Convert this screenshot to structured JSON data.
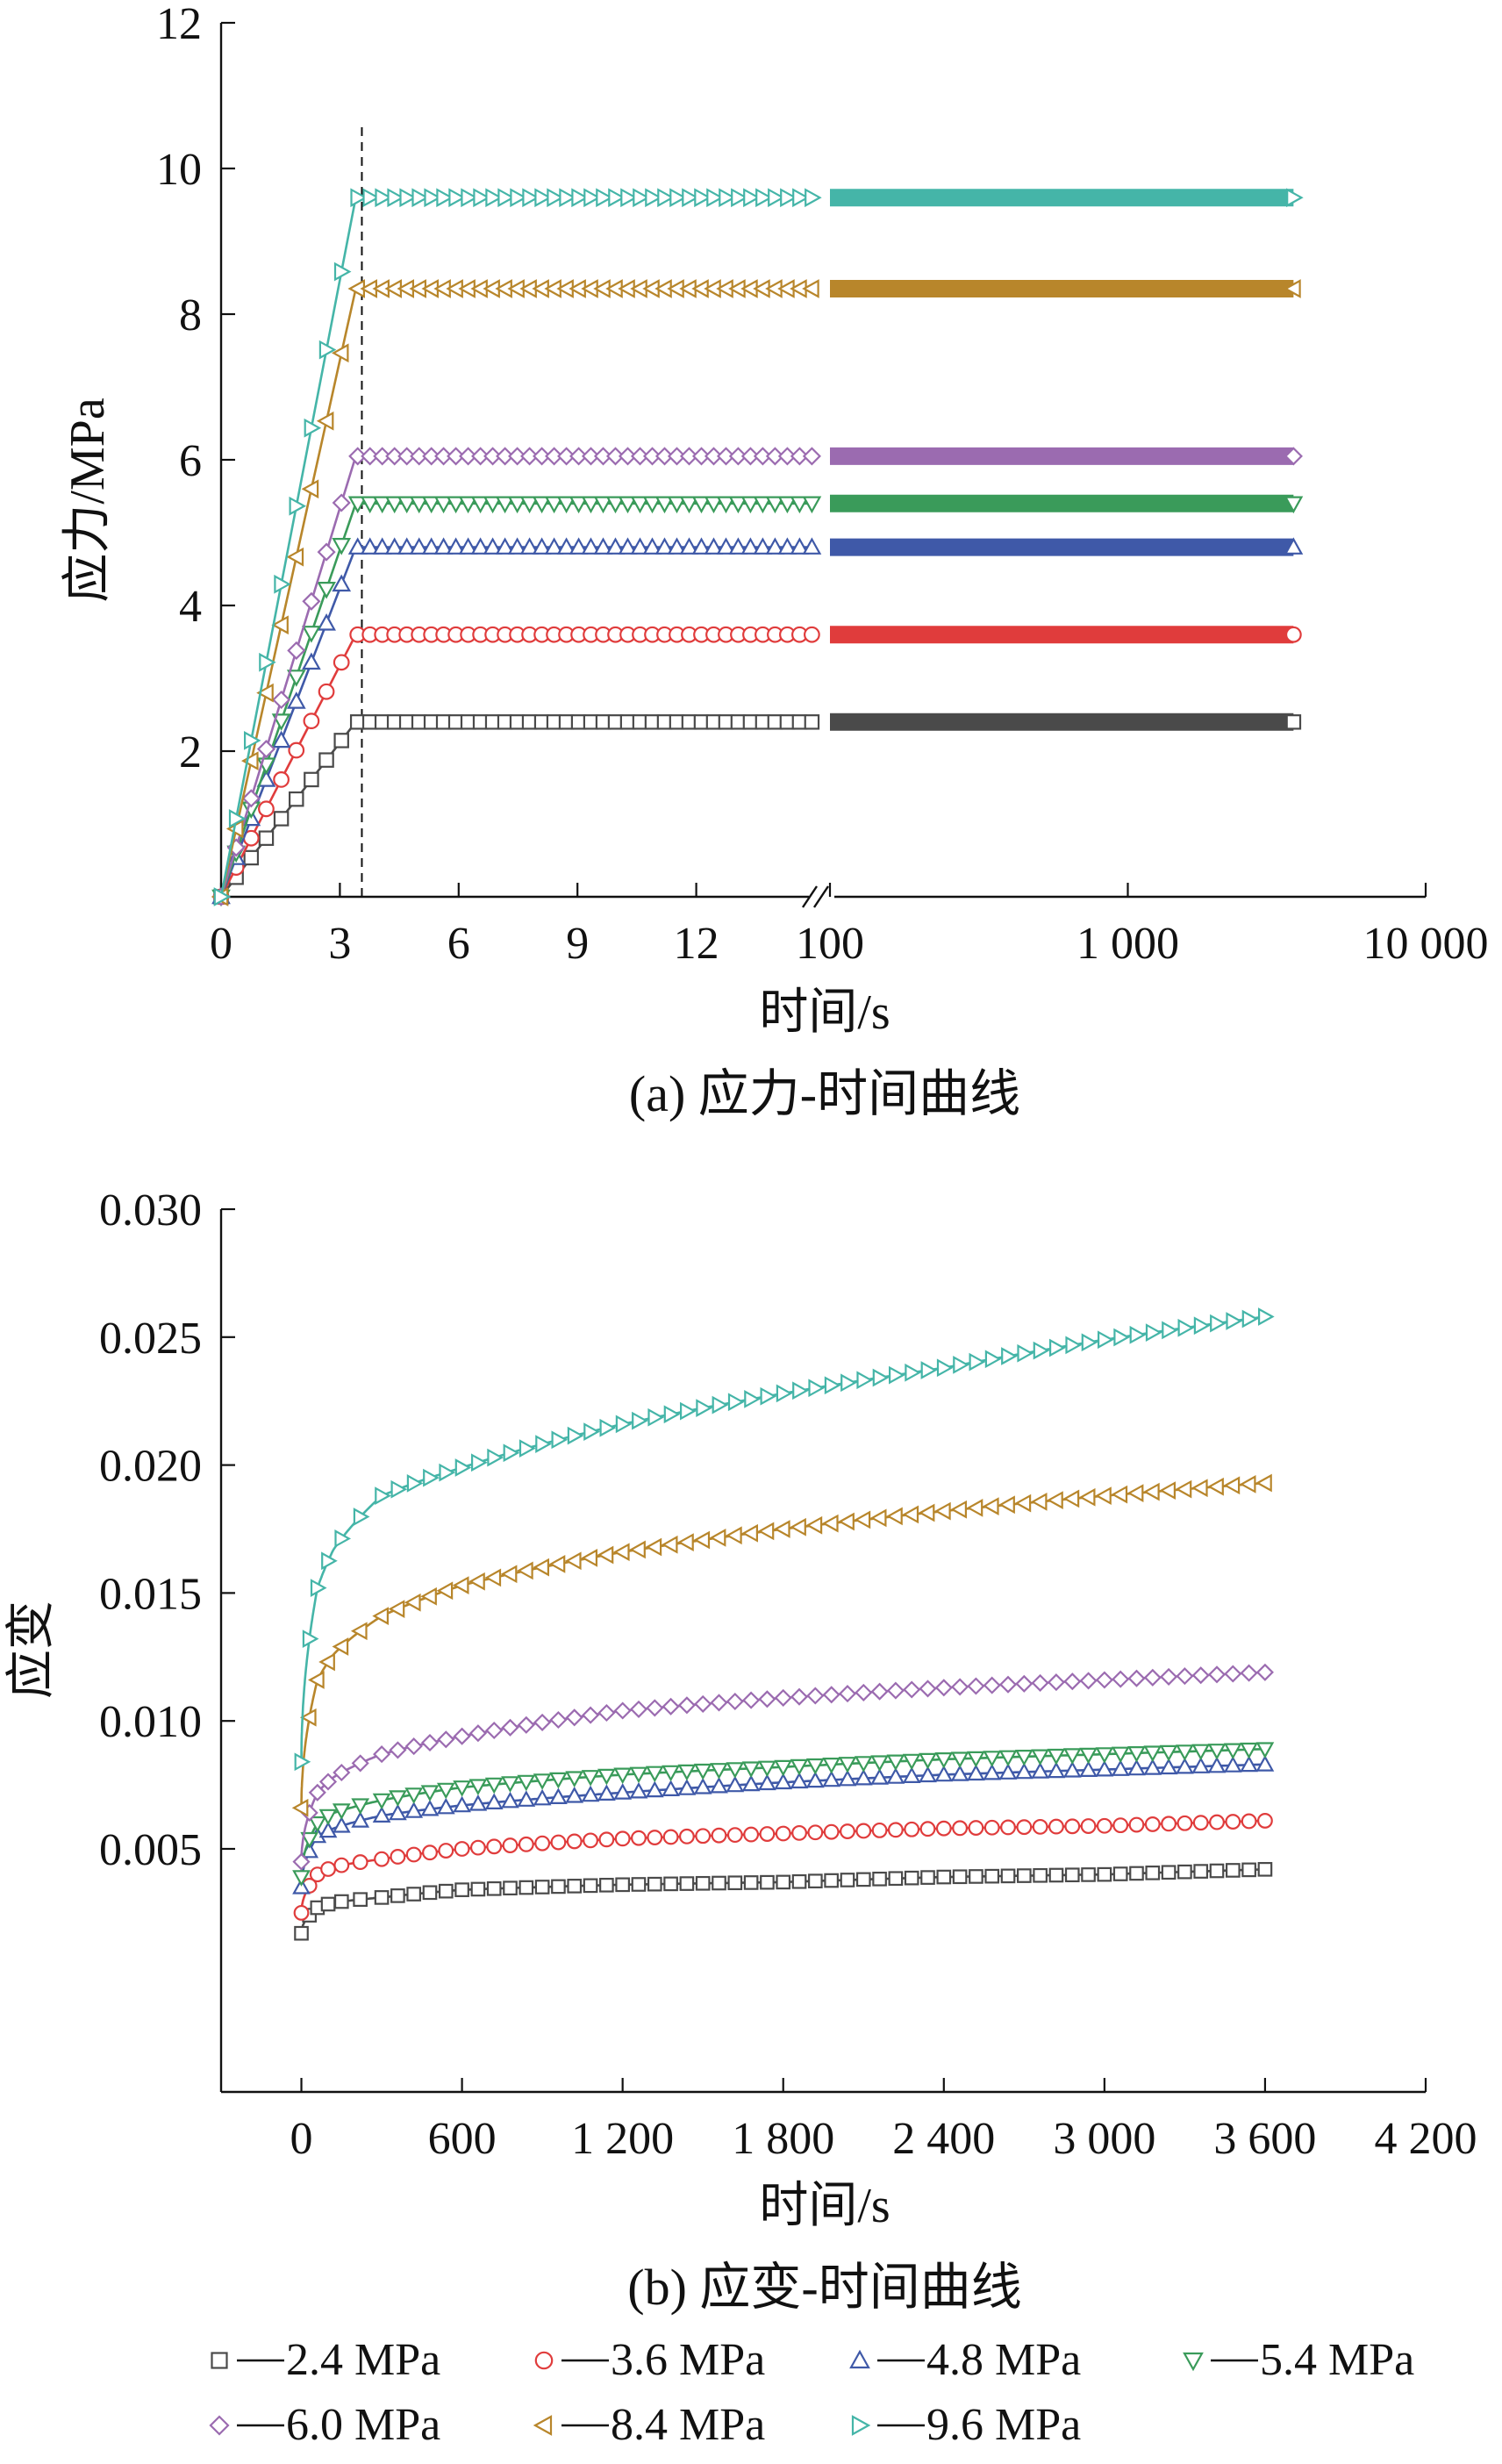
{
  "chart_data": [
    {
      "type": "line",
      "caption": "(a) 应力-时间曲线",
      "xlabel": "时间/s",
      "ylabel": "应力/MPa",
      "ylim": [
        0,
        12
      ],
      "y_ticks": [
        {
          "value": 2,
          "label": "2"
        },
        {
          "value": 4,
          "label": "4"
        },
        {
          "value": 6,
          "label": "6"
        },
        {
          "value": 8,
          "label": "8"
        },
        {
          "value": 10,
          "label": "10"
        },
        {
          "value": 12,
          "label": "12"
        }
      ],
      "x_axis": "broken: linear 0-15 s, then logarithmic 100-10000 s",
      "x_ticks_linear": [
        {
          "value": 0,
          "label": "0"
        },
        {
          "value": 3,
          "label": "3"
        },
        {
          "value": 6,
          "label": "6"
        },
        {
          "value": 9,
          "label": "9"
        },
        {
          "value": 12,
          "label": "12"
        }
      ],
      "x_ticks_log": [
        {
          "value": 100,
          "label": "100"
        },
        {
          "value": 1000,
          "label": "1 000"
        },
        {
          "value": 10000,
          "label": "10 000"
        }
      ],
      "loading_end_time": 3.4,
      "hold_end_time": 3600,
      "series": [
        {
          "name": "2.4 MPa",
          "stress": 2.4,
          "color": "#4a4a4a",
          "marker": "square"
        },
        {
          "name": "3.6 MPa",
          "stress": 3.6,
          "color": "#e03c3c",
          "marker": "circle"
        },
        {
          "name": "4.8 MPa",
          "stress": 4.8,
          "color": "#3f59a8",
          "marker": "triangle-up"
        },
        {
          "name": "5.4 MPa",
          "stress": 5.4,
          "color": "#3a9b5a",
          "marker": "triangle-down"
        },
        {
          "name": "6.0 MPa",
          "stress": 6.05,
          "color": "#9b6bb0",
          "marker": "diamond"
        },
        {
          "name": "8.4 MPa",
          "stress": 8.35,
          "color": "#b8862b",
          "marker": "triangle-left"
        },
        {
          "name": "9.6 MPa",
          "stress": 9.6,
          "color": "#45b5a8",
          "marker": "triangle-right"
        }
      ]
    },
    {
      "type": "line",
      "caption": "(b) 应变-时间曲线",
      "xlabel": "时间/s",
      "ylabel": "应变",
      "xlim": [
        -300,
        4200
      ],
      "ylim": [
        -0.0045,
        0.03
      ],
      "x_ticks": [
        {
          "value": 0,
          "label": "0"
        },
        {
          "value": 600,
          "label": "600"
        },
        {
          "value": 1200,
          "label": "1 200"
        },
        {
          "value": 1800,
          "label": "1 800"
        },
        {
          "value": 2400,
          "label": "2 400"
        },
        {
          "value": 3000,
          "label": "3 000"
        },
        {
          "value": 3600,
          "label": "3 600"
        },
        {
          "value": 4200,
          "label": "4 200"
        }
      ],
      "y_ticks": [
        {
          "value": 0.005,
          "label": "0.005"
        },
        {
          "value": 0.01,
          "label": "0.010"
        },
        {
          "value": 0.015,
          "label": "0.015"
        },
        {
          "value": 0.02,
          "label": "0.020"
        },
        {
          "value": 0.025,
          "label": "0.025"
        },
        {
          "value": 0.03,
          "label": "0.030"
        }
      ],
      "creep_points_t": [
        0,
        60,
        120,
        300,
        600,
        1200,
        1800,
        2400,
        3000,
        3600
      ],
      "series": [
        {
          "name": "2.4 MPa",
          "color": "#4a4a4a",
          "marker": "square",
          "strain": [
            0.0017,
            0.0027,
            0.0029,
            0.0031,
            0.0034,
            0.0036,
            0.0037,
            0.0039,
            0.004,
            0.0042
          ]
        },
        {
          "name": "3.6 MPa",
          "color": "#e03c3c",
          "marker": "circle",
          "strain": [
            0.0025,
            0.004,
            0.0043,
            0.0046,
            0.005,
            0.0054,
            0.0056,
            0.0058,
            0.0059,
            0.0061
          ]
        },
        {
          "name": "4.8 MPa",
          "color": "#3f59a8",
          "marker": "triangle-up",
          "strain": [
            0.0035,
            0.0055,
            0.0058,
            0.0063,
            0.0067,
            0.0072,
            0.0076,
            0.0079,
            0.0081,
            0.0083
          ]
        },
        {
          "name": "5.4 MPa",
          "color": "#3a9b5a",
          "marker": "triangle-down",
          "strain": [
            0.0039,
            0.006,
            0.0064,
            0.0069,
            0.0074,
            0.0079,
            0.0082,
            0.0085,
            0.0087,
            0.0089
          ]
        },
        {
          "name": "6.0 MPa",
          "color": "#9b6bb0",
          "marker": "diamond",
          "strain": [
            0.0045,
            0.0072,
            0.0078,
            0.0087,
            0.0094,
            0.0104,
            0.0109,
            0.0113,
            0.0116,
            0.0119
          ]
        },
        {
          "name": "8.4 MPa",
          "color": "#b8862b",
          "marker": "triangle-left",
          "strain": [
            0.0066,
            0.0116,
            0.0126,
            0.0141,
            0.0153,
            0.0166,
            0.0175,
            0.0182,
            0.0188,
            0.0193
          ]
        },
        {
          "name": "9.6 MPa",
          "color": "#45b5a8",
          "marker": "triangle-right",
          "strain": [
            0.0084,
            0.0152,
            0.0167,
            0.0188,
            0.0199,
            0.0216,
            0.0228,
            0.0238,
            0.0249,
            0.0258
          ]
        }
      ]
    }
  ]
}
